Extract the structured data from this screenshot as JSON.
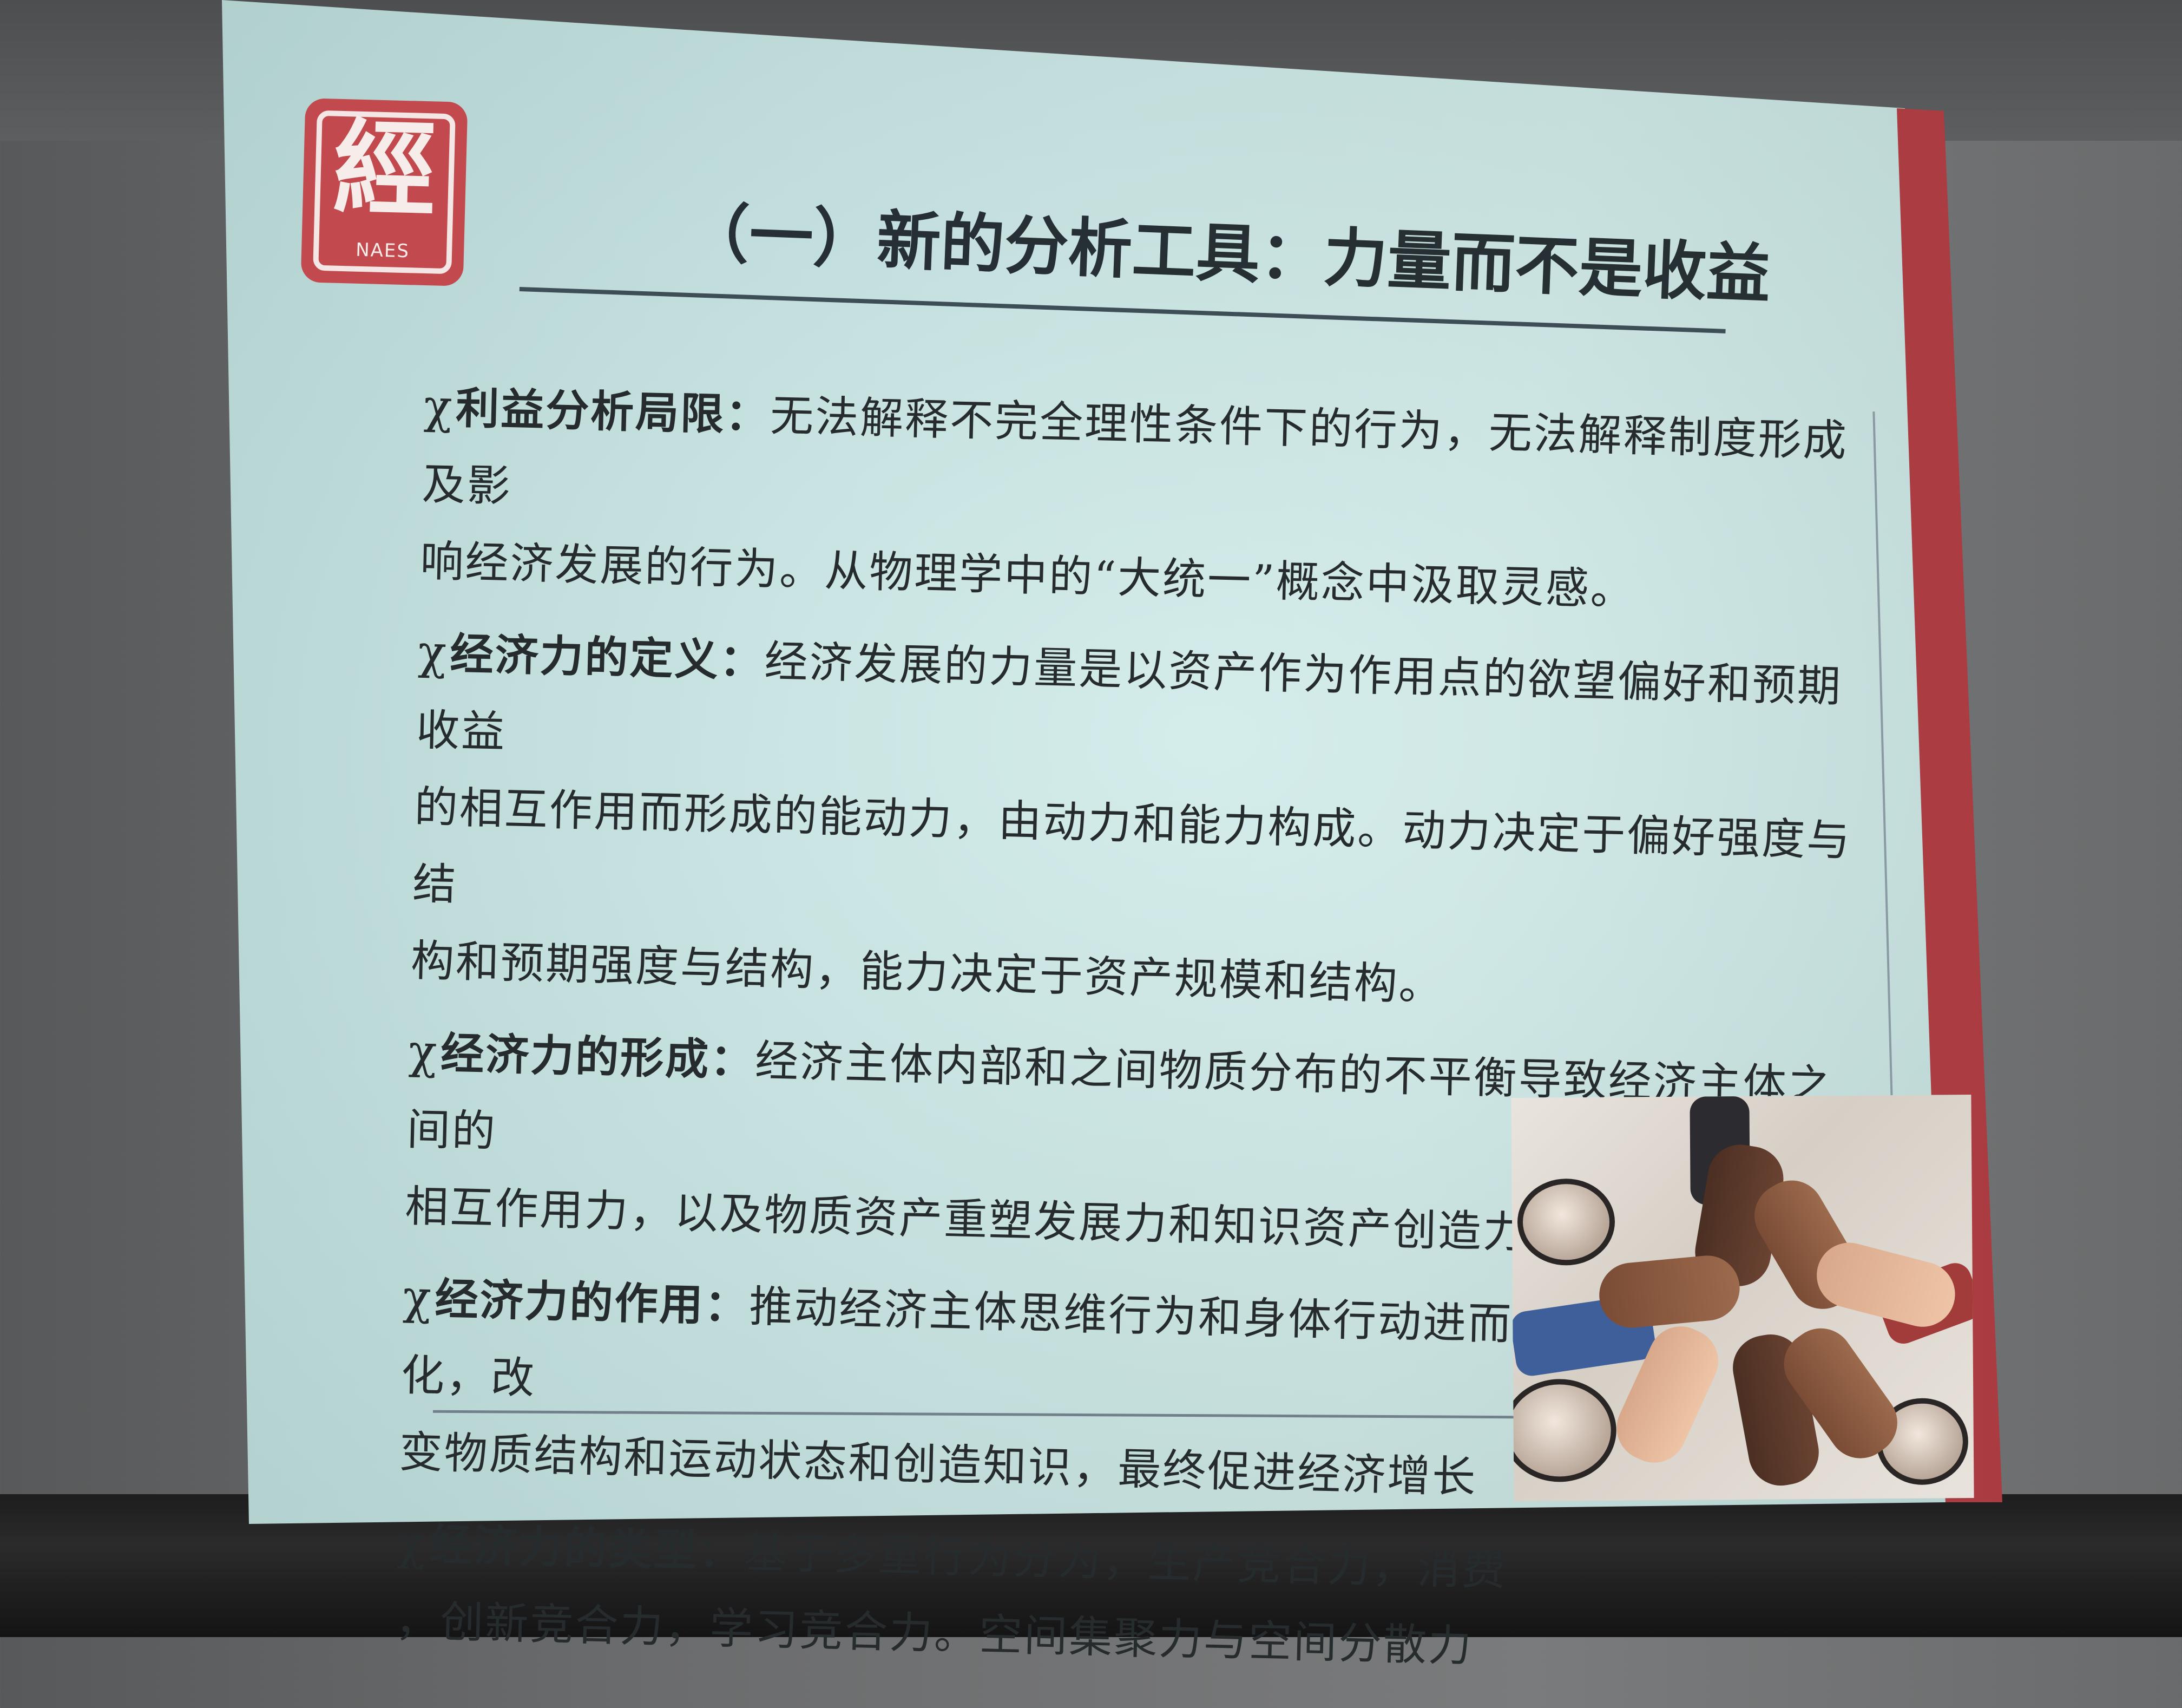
{
  "slide": {
    "logo": {
      "glyph": "經",
      "text": "NAES"
    },
    "title": "（一）新的分析工具：力量而不是收益",
    "bullets": [
      {
        "marker": "χ",
        "heading": "利益分析局限：",
        "lines": [
          "无法解释不完全理性条件下的行为，无法解释制度形成及影",
          "响经济发展的行为。从物理学中的“大统一”概念中汲取灵感。"
        ]
      },
      {
        "marker": "χ",
        "heading": "经济力的定义：",
        "lines": [
          "经济发展的力量是以资产作为作用点的欲望偏好和预期收益",
          "的相互作用而形成的能动力，由动力和能力构成。动力决定于偏好强度与结",
          "构和预期强度与结构，能力决定于资产规模和结构。"
        ]
      },
      {
        "marker": "χ",
        "heading": "经济力的形成：",
        "lines": [
          "经济主体内部和之间物质分布的不平衡导致经济主体之间的",
          "相互作用力，以及物质资产重塑发展力和知识资产创造力。"
        ]
      },
      {
        "marker": "χ",
        "heading": "经济力的作用：",
        "lines": [
          "推动经济主体思维行为和身体行动进而导致物品的变化，改",
          "变物质结构和运动状态和创造知识，最终促进经济增长"
        ]
      },
      {
        "marker": "χ",
        "heading": "经济力的类型：",
        "lines": [
          "基于多重行为分为，生产竞合力，消费",
          "，创新竞合力，学习竞合力。空间集聚力与空间分散力"
        ]
      }
    ]
  },
  "colors": {
    "slide_background": "#c7e7e5",
    "accent_red": "#b94a4f",
    "text": "#262b2e"
  },
  "icons": {
    "logo": "naes-seal-icon",
    "photo": "stacked-fists-photo"
  }
}
